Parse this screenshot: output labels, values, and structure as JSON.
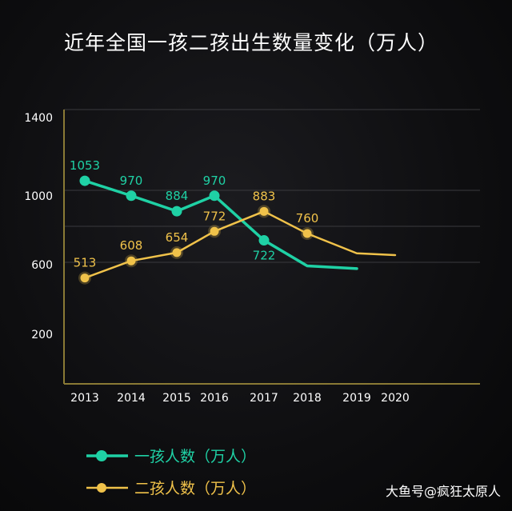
{
  "page": {
    "watermark": "大鱼号@疯狂太原人"
  },
  "chart_data": {
    "type": "line",
    "title": "近年全国一孩二孩出生数量变化（万人）",
    "xlabel": "",
    "ylabel": "",
    "x": [
      "2013",
      "2014",
      "2015",
      "2016",
      "2017",
      "2018",
      "2019",
      "2020"
    ],
    "yticks": [
      "1400",
      "1000",
      "600",
      "200"
    ],
    "grid": true,
    "legend_position": "bottom-left",
    "series": [
      {
        "name": "一孩人数（万人）",
        "color": "#1fd1a5",
        "values": [
          1053,
          970,
          884,
          970,
          722,
          580,
          565,
          null
        ],
        "labels": [
          "1053",
          "970",
          "884",
          "970",
          "722",
          "",
          "",
          ""
        ]
      },
      {
        "name": "二孩人数（万人）",
        "color": "#f0c24a",
        "values": [
          513,
          608,
          654,
          772,
          883,
          760,
          650,
          640
        ],
        "labels": [
          "513",
          "608",
          "654",
          "772",
          "883",
          "760",
          "",
          ""
        ]
      }
    ]
  }
}
